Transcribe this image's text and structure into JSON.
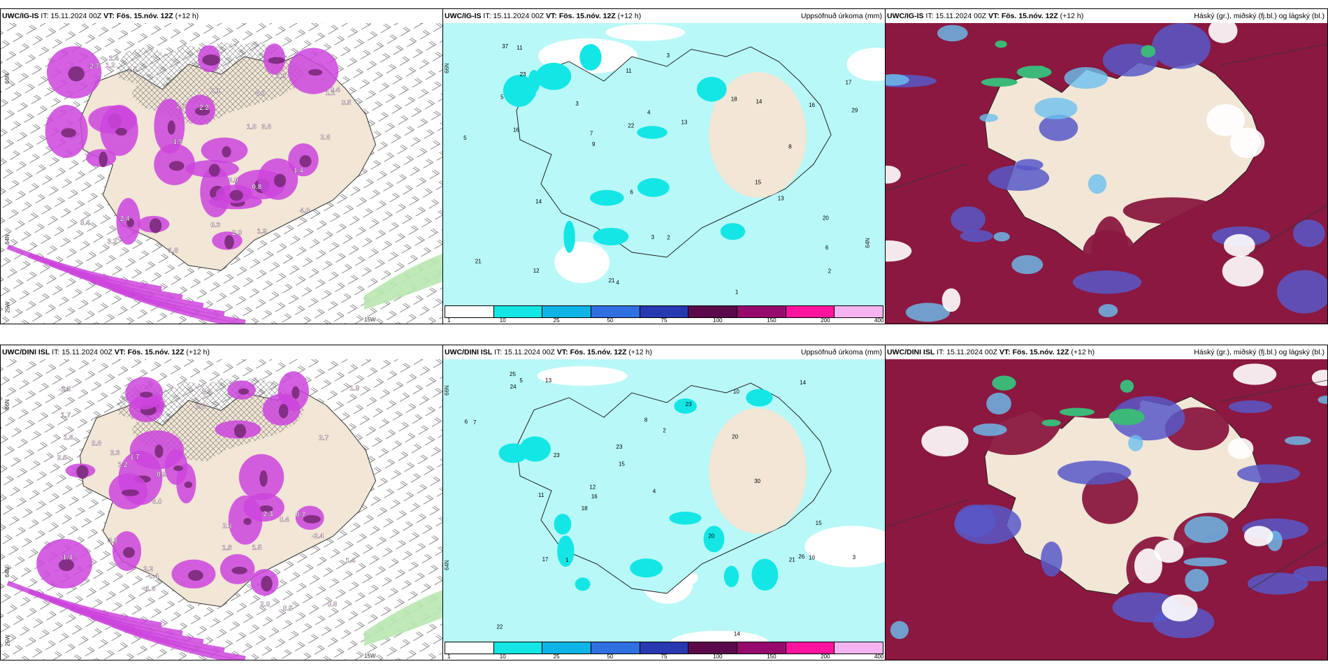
{
  "panels": [
    {
      "model": "UWC/IG-IS",
      "it_label": "IT:",
      "init_time": "15.11.2024 00Z",
      "vt_label": "VT:",
      "valid_time": "Fös. 15.nóv. 12Z",
      "lead": "(+12 h)",
      "right_title": "",
      "kind": "temp",
      "lat_label": "66N",
      "lat_label2": "64N",
      "lon_label": "25W",
      "lon_label2": "15W",
      "value_labels": [
        "1.2",
        "2.0",
        "1.9",
        "1.5",
        "2.6",
        "1.8",
        "3.2",
        "2.1",
        "1.6",
        "4.0",
        "1.4",
        "2.4",
        "3.6",
        "0.4",
        "2.2",
        "2.7",
        "3.1",
        "0.3",
        "2.3",
        "0.4",
        "0.8",
        "1.1",
        "1.4",
        "2.5",
        "0.5",
        "1.9",
        "2.0"
      ]
    },
    {
      "model": "UWC/IG-IS",
      "it_label": "IT:",
      "init_time": "15.11.2024 00Z",
      "vt_label": "VT:",
      "valid_time": "Fös. 15.nóv. 12Z",
      "lead": "(+12 h)",
      "right_title": "Uppsöfnuð úrkoma (mm)",
      "kind": "precip",
      "lat_label": "66N",
      "lat_label2": "64N",
      "value_labels": [
        "6",
        "3",
        "4",
        "2",
        "11",
        "16",
        "21",
        "14",
        "13",
        "9",
        "12",
        "17",
        "15",
        "14",
        "18",
        "20",
        "11",
        "21",
        "23",
        "13",
        "22",
        "16",
        "29",
        "37",
        "7",
        "5",
        "4",
        "6",
        "3",
        "8",
        "2",
        "5",
        "3",
        "1"
      ],
      "colorbar": {
        "ticks": [
          "1",
          "10",
          "25",
          "50",
          "75",
          "100",
          "150",
          "200",
          "400"
        ],
        "colors": [
          "#ffffff",
          "#14e6e6",
          "#0fb4e6",
          "#2f6fe0",
          "#2838b0",
          "#5a0a4a",
          "#960a6e",
          "#ff14a0",
          "#f5b4f0"
        ]
      }
    },
    {
      "model": "UWC/IG-IS",
      "it_label": "IT:",
      "init_time": "15.11.2024 00Z",
      "vt_label": "VT:",
      "valid_time": "Fös. 15.nóv. 12Z",
      "lead": "(+12 h)",
      "right_title": "Háský (gr.), miðský (fj.bl.) og lágský (bl.)",
      "kind": "cloud"
    },
    {
      "model": "UWC/DINI ISL",
      "it_label": "IT:",
      "init_time": "15.11.2024 00Z",
      "vt_label": "VT:",
      "valid_time": "Fös. 15.nóv. 12Z",
      "lead": "(+12 h)",
      "right_title": "",
      "kind": "temp",
      "lat_label": "66N",
      "lat_label2": "64N",
      "lon_label": "25W",
      "lon_label2": "15W",
      "value_labels": [
        "-1.4",
        "-2.4",
        "-1.5",
        "2.3",
        "1.9",
        "1.8",
        "2.1",
        "2.8",
        "2.6",
        "3.7",
        "1.5",
        "2.0",
        "1.6",
        "1.5",
        "1.7",
        "3.0",
        "0.4",
        "0.5",
        "2.7",
        "3.1",
        "2.2",
        "0.9",
        "1.7",
        "0.8",
        "2.5",
        "0.4",
        "1.4",
        "1.2",
        "2.3",
        "0.7"
      ]
    },
    {
      "model": "UWC/DINI ISL",
      "it_label": "IT:",
      "init_time": "15.11.2024 00Z",
      "vt_label": "VT:",
      "valid_time": "Fös. 15.nóv. 12Z",
      "lead": "(+12 h)",
      "right_title": "Uppsöfnuð úrkoma (mm)",
      "kind": "precip",
      "lat_label": "66N",
      "lat_label2": "64N",
      "value_labels": [
        "3",
        "11",
        "7",
        "14",
        "16",
        "25",
        "21",
        "20",
        "17",
        "13",
        "23",
        "20",
        "15",
        "12",
        "10",
        "14",
        "18",
        "30",
        "23",
        "26",
        "22",
        "15",
        "23",
        "24",
        "8",
        "10",
        "5",
        "4",
        "6",
        "2",
        "1"
      ],
      "colorbar": {
        "ticks": [
          "1",
          "10",
          "25",
          "50",
          "75",
          "100",
          "150",
          "200",
          "400"
        ],
        "colors": [
          "#ffffff",
          "#14e6e6",
          "#0fb4e6",
          "#2f6fe0",
          "#2838b0",
          "#5a0a4a",
          "#960a6e",
          "#ff14a0",
          "#f5b4f0"
        ]
      }
    },
    {
      "model": "UWC/DINI ISL",
      "it_label": "IT:",
      "init_time": "15.11.2024 00Z",
      "vt_label": "VT:",
      "valid_time": "Fös. 15.nóv. 12Z",
      "lead": "(+12 h)",
      "right_title": "Háský (gr.), miðský (fj.bl.) og lágský (bl.)",
      "kind": "cloud"
    }
  ],
  "colors": {
    "land": "#f2e6d6",
    "purple": "#cc44dd",
    "purple_dark": "#7a2a7a",
    "sea_precip": "#b8f8f8",
    "cyan": "#14e6e6",
    "cloud_high": "#8a1840",
    "cloud_mid": "#5858c8",
    "cloud_low": "#6cc0f0",
    "green": "#3cb878"
  }
}
